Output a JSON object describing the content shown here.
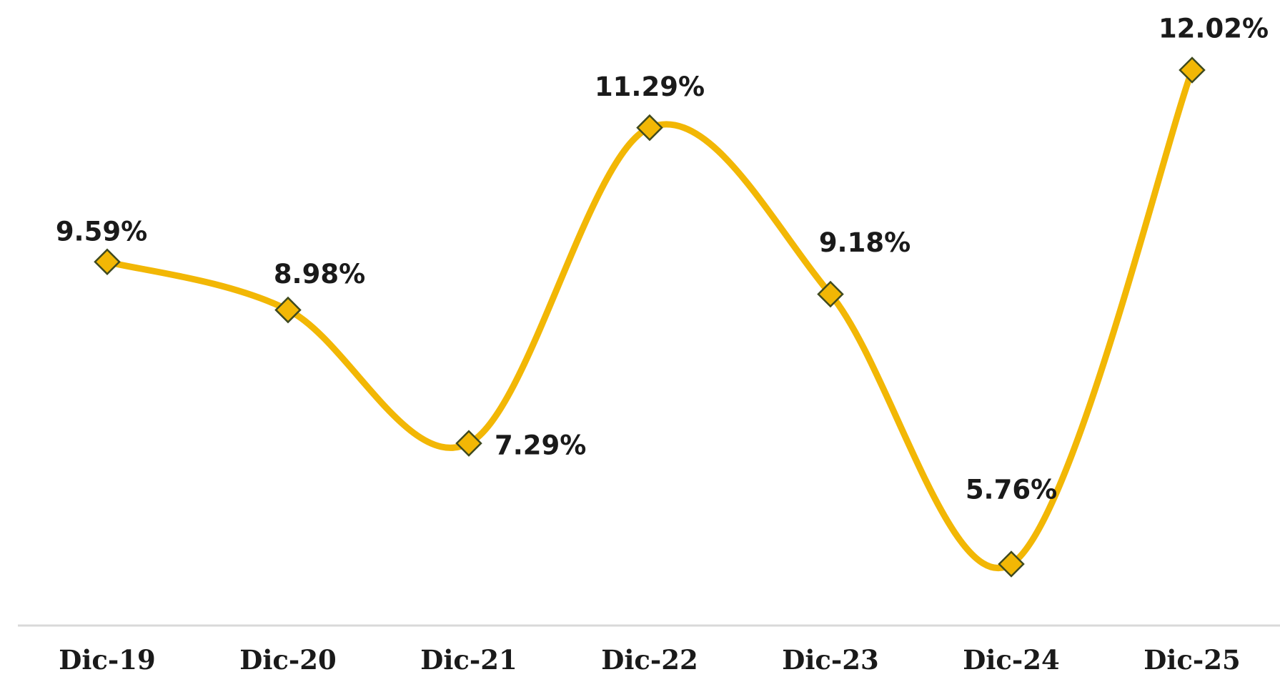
{
  "colors": {
    "line": "#F2B705",
    "marker_fill": "#F2B705",
    "marker_stroke": "#3F4A1F",
    "axis": "#D9D9D9",
    "text": "#1A1A1A"
  },
  "chart_data": {
    "type": "line",
    "categories": [
      "Dic-19",
      "Dic-20",
      "Dic-21",
      "Dic-22",
      "Dic-23",
      "Dic-24",
      "Dic-25"
    ],
    "series": [
      {
        "values": [
          9.59,
          8.98,
          7.29,
          11.29,
          9.18,
          5.76,
          12.02
        ],
        "labels": [
          "9.59%",
          "8.98%",
          "7.29%",
          "11.29%",
          "9.18%",
          "5.76%",
          "12.02%"
        ],
        "marker": "diamond",
        "smooth": true
      }
    ],
    "title": "",
    "xlabel": "",
    "ylabel": "",
    "ylim": [
      5.76,
      12.02
    ],
    "grid": false,
    "legend": "none",
    "y_axis_visible": false
  }
}
